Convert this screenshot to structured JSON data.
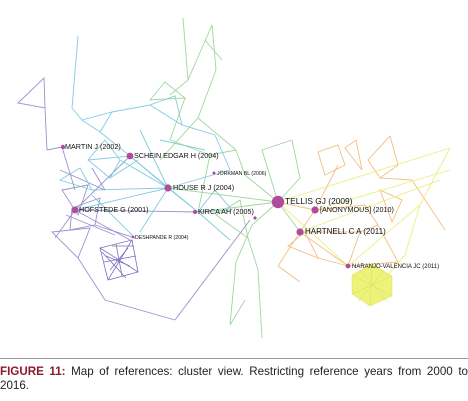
{
  "caption": {
    "figure_label": "FIGURE 11:",
    "text": " Map of references: cluster view. Restricting reference years from 2000 to 2016."
  },
  "colors": {
    "purple": "#8a7fc4",
    "cyan": "#6cc3dc",
    "green": "#8bd18a",
    "orange": "#f2b36a",
    "yellow": "#e8ee70",
    "node": "#b04c9c"
  },
  "nodes": [
    {
      "name": "node-martin-j-2002",
      "label": "MARTIN J (2002)",
      "size": "small"
    },
    {
      "name": "node-schein-edgar-h-2004",
      "label": "SCHEIN EDGAR H (2004)",
      "size": "medium"
    },
    {
      "name": "node-jorkman-2006",
      "label": "JÖRKMAN BL (2006)",
      "size": "tiny"
    },
    {
      "name": "node-house-r-j-2004",
      "label": "HOUSE R J (2004)",
      "size": "medium"
    },
    {
      "name": "node-hofstede-g-2001",
      "label": "HOFSTEDE G (2001)",
      "size": "medium"
    },
    {
      "name": "node-kirca-ah-2005",
      "label": "KIRCA AH (2005)",
      "size": "small"
    },
    {
      "name": "node-deshpande-r-2004",
      "label": "DESHPANDE R (2004)",
      "size": "tiny"
    },
    {
      "name": "node-tellis-gj-2009",
      "label": "TELLIS GJ (2009)",
      "size": "large"
    },
    {
      "name": "node-anonymous-2010",
      "label": "[ANONYMOUS] (2010)",
      "size": "medium"
    },
    {
      "name": "node-hartnell-ca-2011",
      "label": "HARTNELL C A (2011)",
      "size": "medium"
    },
    {
      "name": "node-naranjo-valencia-jc-2011",
      "label": "NARANJO-VALENCIA JC (2011)",
      "size": "small"
    }
  ]
}
